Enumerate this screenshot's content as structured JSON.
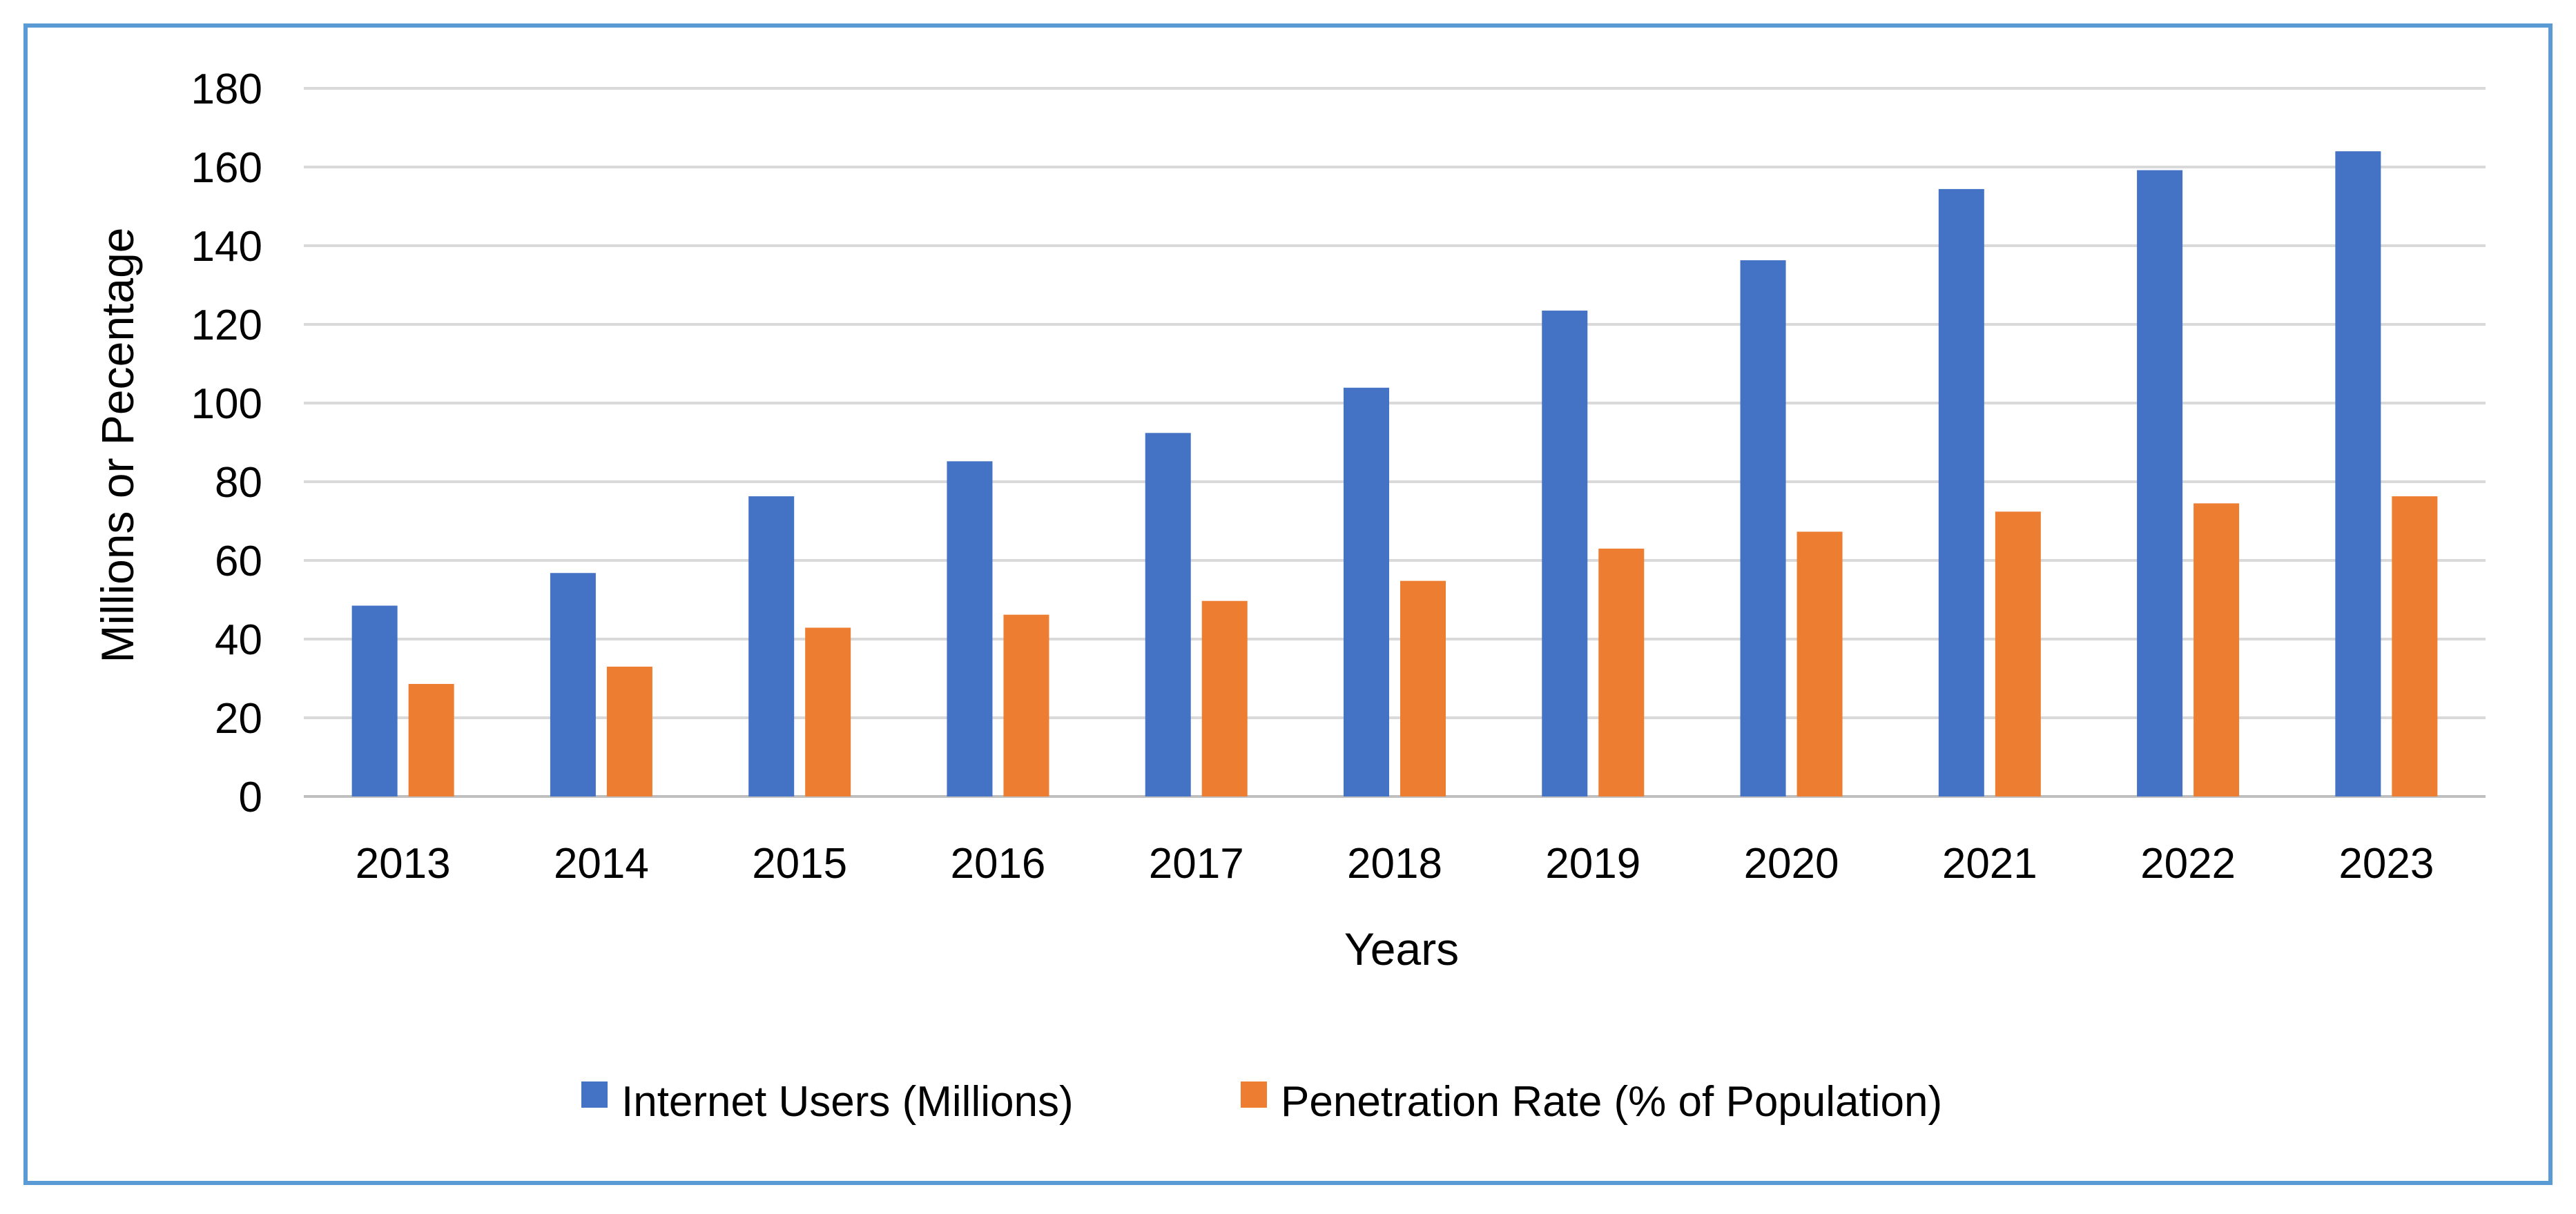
{
  "chart_data": {
    "type": "bar",
    "title": "",
    "xlabel": "Years",
    "ylabel": "Millions or Pecentage",
    "ylim": [
      0,
      180
    ],
    "yticks": [
      0,
      20,
      40,
      60,
      80,
      100,
      120,
      140,
      160,
      180
    ],
    "grid": true,
    "legend_position": "bottom",
    "categories": [
      "2013",
      "2014",
      "2015",
      "2016",
      "2017",
      "2018",
      "2019",
      "2020",
      "2021",
      "2022",
      "2023"
    ],
    "series": [
      {
        "name": "Internet Users (Millions)",
        "color": "#4472C4",
        "values": [
          48.5,
          56.8,
          76.3,
          85.2,
          92.4,
          103.9,
          123.5,
          136.3,
          154.4,
          159.2,
          164.0
        ]
      },
      {
        "name": "Penetration Rate (% of Population)",
        "color": "#ED7D31",
        "values": [
          28.6,
          33.0,
          42.9,
          46.2,
          49.7,
          54.8,
          63.0,
          67.3,
          72.4,
          74.5,
          76.3
        ]
      }
    ],
    "colors": {
      "border": "#5B9BD5",
      "gridline": "#D9D9D9",
      "text": "#000000"
    }
  }
}
